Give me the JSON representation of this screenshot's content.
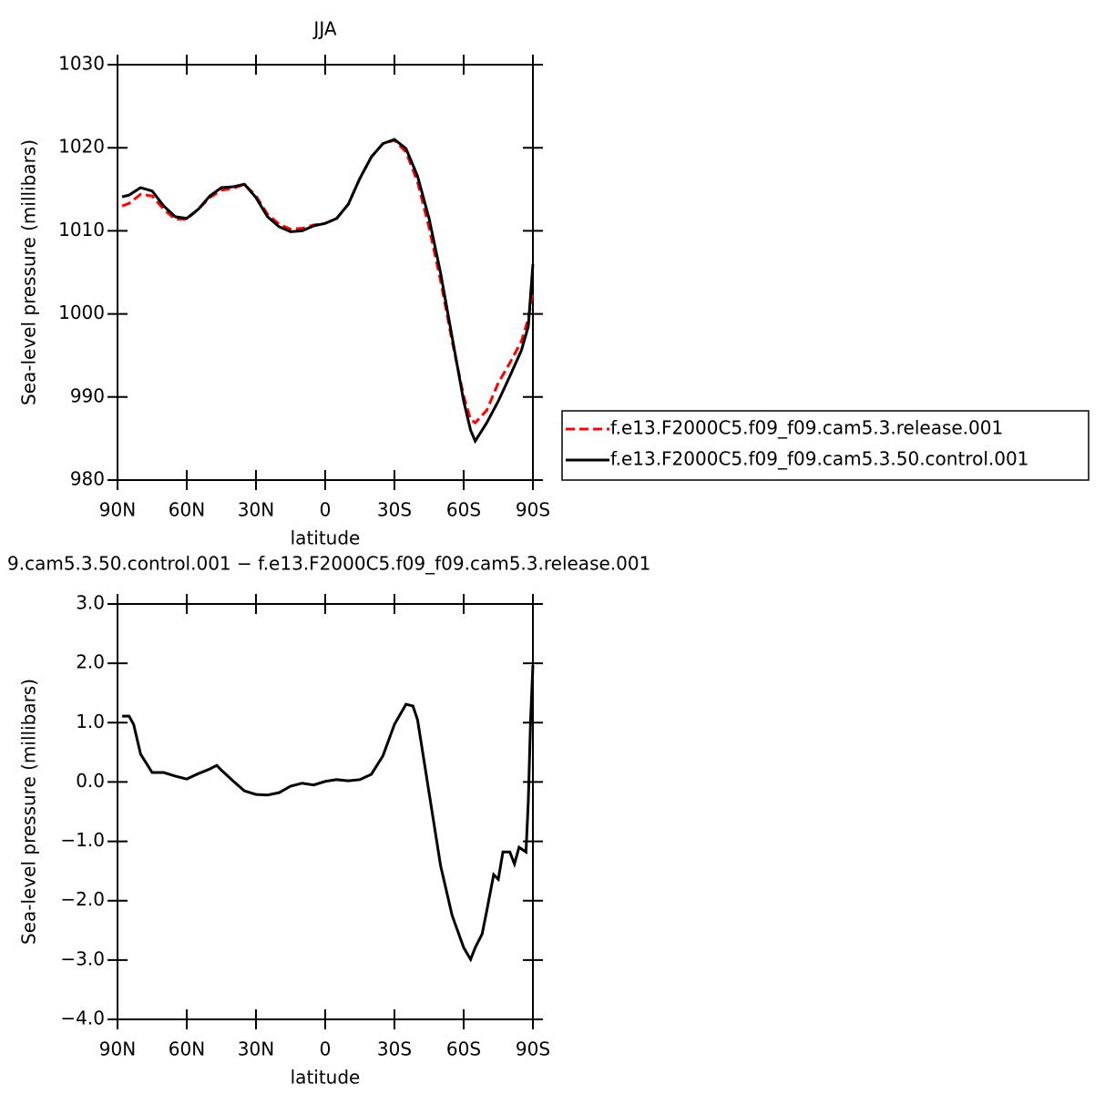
{
  "chart_data": [
    {
      "type": "line",
      "title": "JJA",
      "xlabel": "latitude",
      "ylabel": "Sea-level pressure (millibars)",
      "x": [
        88,
        85,
        80,
        75,
        70,
        65,
        60,
        55,
        50,
        45,
        40,
        35,
        30,
        25,
        20,
        15,
        10,
        5,
        0,
        -5,
        -10,
        -15,
        -20,
        -25,
        -30,
        -35,
        -40,
        -45,
        -50,
        -55,
        -60,
        -63,
        -65,
        -70,
        -75,
        -80,
        -85,
        -88,
        -90
      ],
      "xlim": [
        90,
        -90
      ],
      "xticks": [
        {
          "value": 90,
          "label": "90N"
        },
        {
          "value": 60,
          "label": "60N"
        },
        {
          "value": 30,
          "label": "30N"
        },
        0,
        {
          "value": -30,
          "label": "30S"
        },
        {
          "value": -60,
          "label": "60S"
        },
        {
          "value": -90,
          "label": "90S"
        }
      ],
      "ylim": [
        980,
        1030
      ],
      "yticks": [
        980,
        990,
        1000,
        1010,
        1020,
        1030
      ],
      "legend": "right",
      "series": [
        {
          "name": "f.e13.F2000C5.f09_f09.cam5.3.release.001",
          "color": "#ff0000",
          "line_style": "dashed",
          "values": [
            1013.0,
            1013.3,
            1014.4,
            1014.2,
            1012.6,
            1011.4,
            1011.4,
            1012.6,
            1014.0,
            1014.9,
            1015.1,
            1015.6,
            1014.2,
            1012.0,
            1010.8,
            1010.2,
            1010.3,
            1010.7,
            1010.9,
            1011.5,
            1013.2,
            1016.3,
            1018.9,
            1020.5,
            1020.9,
            1019.5,
            1015.9,
            1010.4,
            1004.0,
            996.7,
            990.1,
            987.3,
            986.9,
            988.4,
            991.7,
            994.1,
            996.7,
            999.4,
            1002.7
          ]
        },
        {
          "name": "f.e13.F2000C5.f09_f09.cam5.3.50.control.001",
          "color": "#000000",
          "line_style": "solid",
          "values": [
            1014.1,
            1014.3,
            1015.2,
            1014.8,
            1013.0,
            1011.7,
            1011.5,
            1012.6,
            1014.2,
            1015.2,
            1015.3,
            1015.6,
            1014.0,
            1011.7,
            1010.5,
            1009.9,
            1010.0,
            1010.6,
            1010.9,
            1011.5,
            1013.2,
            1016.3,
            1018.9,
            1020.5,
            1021.0,
            1019.9,
            1016.6,
            1011.5,
            1004.9,
            997.2,
            989.5,
            986.0,
            984.7,
            986.9,
            989.5,
            992.5,
            995.6,
            998.5,
            1006.0
          ]
        }
      ]
    },
    {
      "type": "line",
      "title": "9.cam5.3.50.control.001 − f.e13.F2000C5.f09_f09.cam5.3.release.001",
      "xlabel": "latitude",
      "ylabel": "Sea-level pressure (millibars)",
      "x": [
        88,
        85,
        83,
        80,
        75,
        70,
        65,
        60,
        55,
        50,
        47,
        45,
        40,
        35,
        30,
        25,
        20,
        15,
        10,
        5,
        0,
        -5,
        -10,
        -15,
        -20,
        -25,
        -30,
        -35,
        -38,
        -40,
        -45,
        -50,
        -55,
        -60,
        -63,
        -65,
        -68,
        -70,
        -73,
        -75,
        -77,
        -80,
        -82,
        -84,
        -87,
        -88,
        -89,
        -90
      ],
      "xlim": [
        90,
        -90
      ],
      "xticks": [
        {
          "value": 90,
          "label": "90N"
        },
        {
          "value": 60,
          "label": "60N"
        },
        {
          "value": 30,
          "label": "30N"
        },
        0,
        {
          "value": -30,
          "label": "30S"
        },
        {
          "value": -60,
          "label": "60S"
        },
        {
          "value": -90,
          "label": "90S"
        }
      ],
      "ylim": [
        -4,
        3
      ],
      "yticks": [
        {
          "value": -4,
          "label": "−4.0"
        },
        {
          "value": -3,
          "label": "−3.0"
        },
        {
          "value": -2,
          "label": "−2.0"
        },
        {
          "value": -1,
          "label": "−1.0"
        },
        {
          "value": 0,
          "label": "0.0"
        },
        {
          "value": 1,
          "label": "1.0"
        },
        {
          "value": 2,
          "label": "2.0"
        },
        {
          "value": 3,
          "label": "3.0"
        }
      ],
      "series": [
        {
          "color": "#000000",
          "line_style": "solid",
          "values": [
            1.11,
            1.11,
            0.97,
            0.47,
            0.16,
            0.16,
            0.1,
            0.05,
            0.14,
            0.22,
            0.28,
            0.2,
            0.02,
            -0.15,
            -0.21,
            -0.22,
            -0.18,
            -0.07,
            -0.02,
            -0.05,
            0.01,
            0.04,
            0.02,
            0.04,
            0.13,
            0.44,
            0.97,
            1.31,
            1.28,
            1.05,
            -0.18,
            -1.41,
            -2.25,
            -2.79,
            -2.99,
            -2.79,
            -2.56,
            -2.17,
            -1.56,
            -1.64,
            -1.18,
            -1.18,
            -1.38,
            -1.1,
            -1.18,
            -0.33,
            1.05,
            1.97
          ]
        }
      ]
    }
  ]
}
